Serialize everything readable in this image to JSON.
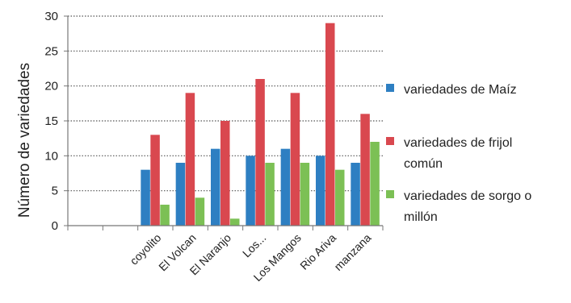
{
  "chart_data": {
    "type": "bar",
    "title": "",
    "xlabel": "",
    "ylabel": "Número de variedades",
    "ylim": [
      0,
      30
    ],
    "yticks": [
      0,
      5,
      10,
      15,
      20,
      25,
      30
    ],
    "grid": true,
    "legend_position": "right",
    "categories": [
      "",
      "",
      "coyolito",
      "El Volcan",
      "El Naranjo",
      "Los...",
      "Los Mangos",
      "Rio Ariva",
      "manzana"
    ],
    "series": [
      {
        "name": "variedades de Maíz",
        "color": "#2E7FC2",
        "values": [
          null,
          null,
          8,
          9,
          11,
          10,
          11,
          10,
          9
        ]
      },
      {
        "name": "variedades de frijol común",
        "color": "#D9484F",
        "values": [
          null,
          null,
          13,
          19,
          15,
          21,
          19,
          29,
          16
        ]
      },
      {
        "name": "variedades de sorgo o millón",
        "color": "#7CC055",
        "values": [
          null,
          null,
          3,
          4,
          1,
          9,
          9,
          8,
          12
        ]
      }
    ],
    "legend_lines": [
      [
        "variedades de Maíz"
      ],
      [
        "variedades de frijol",
        "común"
      ],
      [
        "variedades de sorgo o",
        "millón"
      ]
    ]
  }
}
